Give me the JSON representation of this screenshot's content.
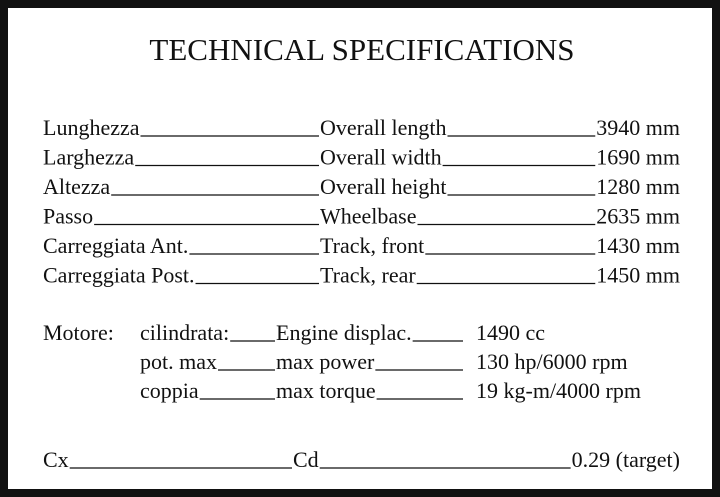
{
  "title": "TECHNICAL SPECIFICATIONS",
  "dimensions": [
    {
      "italian": "Lunghezza",
      "english": "Overall length",
      "value": "3940 mm"
    },
    {
      "italian": "Larghezza",
      "english": "Overall width",
      "value": "1690 mm"
    },
    {
      "italian": "Altezza",
      "english": "Overall height",
      "value": "1280 mm"
    },
    {
      "italian": "Passo",
      "english": "Wheelbase",
      "value": "2635 mm"
    },
    {
      "italian": "Carreggiata Ant.",
      "english": "Track, front",
      "value": "1430 mm"
    },
    {
      "italian": "Carreggiata Post.",
      "english": "Track, rear",
      "value": "1450 mm"
    }
  ],
  "engine": {
    "label": "Motore:",
    "rows": [
      {
        "italian": "cilindrata:",
        "english": "Engine displac.",
        "value": "1490 cc"
      },
      {
        "italian": "pot. max",
        "english": "max power",
        "value": "130 hp/6000 rpm"
      },
      {
        "italian": "coppia",
        "english": "max torque",
        "value": "19 kg-m/4000 rpm"
      }
    ]
  },
  "drag": {
    "italian": "Cx",
    "english": "Cd",
    "value": "0.29 (target)"
  }
}
